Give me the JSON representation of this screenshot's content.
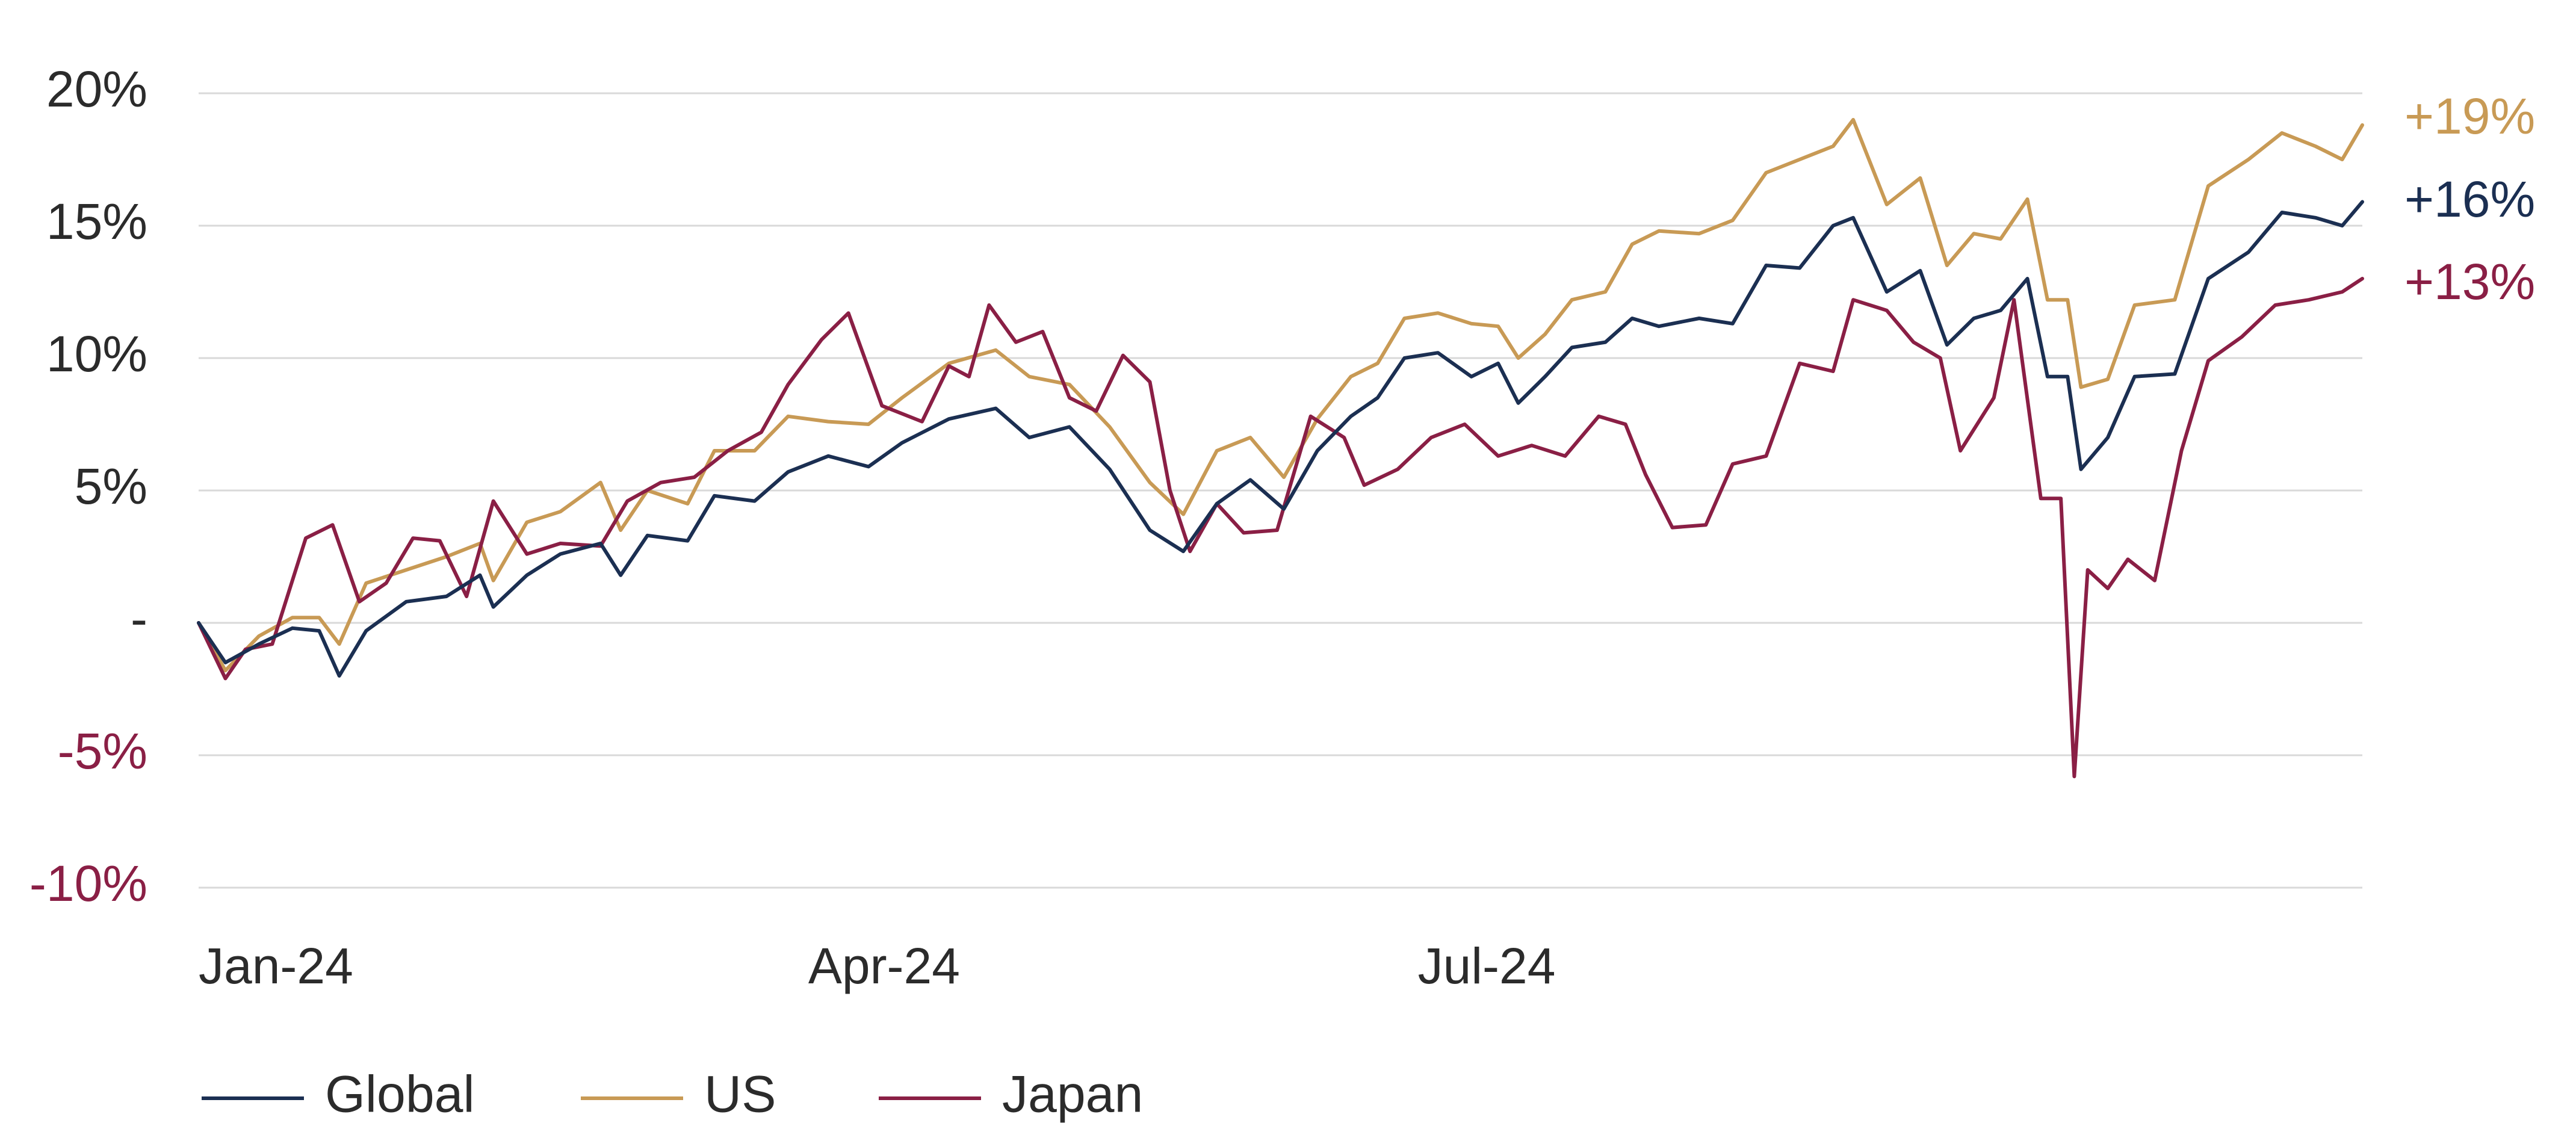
{
  "chart_data": {
    "type": "line",
    "title": "",
    "xlabel": "",
    "ylabel": "",
    "ylim": [
      -10,
      20
    ],
    "y_ticks": [
      20,
      15,
      10,
      5,
      0,
      -5,
      -10
    ],
    "y_tick_labels": [
      "20%",
      "15%",
      "10%",
      "5%",
      "-",
      "-5%",
      "-10%"
    ],
    "y_tick_colors": [
      "#2b2b2b",
      "#2b2b2b",
      "#2b2b2b",
      "#2b2b2b",
      "#2b2b2b",
      "#8a1f45",
      "#8a1f45"
    ],
    "x_ticks": [
      {
        "label": "Jan-24",
        "date": "2024-01-01"
      },
      {
        "label": "Apr-24",
        "date": "2024-04-01"
      },
      {
        "label": "Jul-24",
        "date": "2024-07-01"
      }
    ],
    "grid": "horizontal",
    "legend": "bottom-left",
    "series": [
      {
        "name": "Global",
        "color": "#1b2f52",
        "end_label": "+16%",
        "points": [
          [
            "2024-01-01",
            0.0
          ],
          [
            "2024-01-05",
            -1.5
          ],
          [
            "2024-01-10",
            -0.8
          ],
          [
            "2024-01-15",
            -0.2
          ],
          [
            "2024-01-19",
            -0.3
          ],
          [
            "2024-01-22",
            -2.0
          ],
          [
            "2024-01-26",
            -0.3
          ],
          [
            "2024-02-01",
            0.8
          ],
          [
            "2024-02-07",
            1.0
          ],
          [
            "2024-02-12",
            1.8
          ],
          [
            "2024-02-14",
            0.6
          ],
          [
            "2024-02-19",
            1.8
          ],
          [
            "2024-02-24",
            2.6
          ],
          [
            "2024-03-01",
            3.0
          ],
          [
            "2024-03-04",
            1.8
          ],
          [
            "2024-03-08",
            3.3
          ],
          [
            "2024-03-14",
            3.1
          ],
          [
            "2024-03-18",
            4.8
          ],
          [
            "2024-03-24",
            4.6
          ],
          [
            "2024-03-29",
            5.7
          ],
          [
            "2024-04-04",
            6.3
          ],
          [
            "2024-04-10",
            5.9
          ],
          [
            "2024-04-15",
            6.8
          ],
          [
            "2024-04-22",
            7.7
          ],
          [
            "2024-04-29",
            8.1
          ],
          [
            "2024-05-04",
            7.0
          ],
          [
            "2024-05-10",
            7.4
          ],
          [
            "2024-05-16",
            5.8
          ],
          [
            "2024-05-22",
            3.5
          ],
          [
            "2024-05-27",
            2.7
          ],
          [
            "2024-06-01",
            4.5
          ],
          [
            "2024-06-06",
            5.4
          ],
          [
            "2024-06-11",
            4.3
          ],
          [
            "2024-06-16",
            6.5
          ],
          [
            "2024-06-21",
            7.8
          ],
          [
            "2024-06-25",
            8.5
          ],
          [
            "2024-06-29",
            10.0
          ],
          [
            "2024-07-04",
            10.2
          ],
          [
            "2024-07-09",
            9.3
          ],
          [
            "2024-07-13",
            9.8
          ],
          [
            "2024-07-16",
            8.3
          ],
          [
            "2024-07-20",
            9.3
          ],
          [
            "2024-07-24",
            10.4
          ],
          [
            "2024-07-29",
            10.6
          ],
          [
            "2024-08-02",
            11.5
          ],
          [
            "2024-08-06",
            11.2
          ],
          [
            "2024-08-12",
            11.5
          ],
          [
            "2024-08-17",
            11.3
          ],
          [
            "2024-08-22",
            13.5
          ],
          [
            "2024-08-27",
            13.4
          ],
          [
            "2024-09-01",
            15.0
          ],
          [
            "2024-09-04",
            15.3
          ],
          [
            "2024-09-09",
            12.5
          ],
          [
            "2024-09-14",
            13.3
          ],
          [
            "2024-09-18",
            10.5
          ],
          [
            "2024-09-22",
            11.5
          ],
          [
            "2024-09-26",
            11.8
          ],
          [
            "2024-09-30",
            13.0
          ],
          [
            "2024-10-03",
            9.3
          ],
          [
            "2024-10-06",
            9.3
          ],
          [
            "2024-10-08",
            5.8
          ],
          [
            "2024-10-12",
            7.0
          ],
          [
            "2024-10-16",
            9.3
          ],
          [
            "2024-10-22",
            9.4
          ],
          [
            "2024-10-27",
            13.0
          ],
          [
            "2024-11-02",
            14.0
          ],
          [
            "2024-11-07",
            15.5
          ],
          [
            "2024-11-12",
            15.3
          ],
          [
            "2024-11-16",
            15.0
          ],
          [
            "2024-11-19",
            15.9
          ]
        ]
      },
      {
        "name": "US",
        "color": "#c89a55",
        "end_label": "+19%",
        "points": [
          [
            "2024-01-01",
            0.0
          ],
          [
            "2024-01-05",
            -1.8
          ],
          [
            "2024-01-10",
            -0.5
          ],
          [
            "2024-01-15",
            0.2
          ],
          [
            "2024-01-19",
            0.2
          ],
          [
            "2024-01-22",
            -0.8
          ],
          [
            "2024-01-26",
            1.5
          ],
          [
            "2024-02-01",
            2.0
          ],
          [
            "2024-02-07",
            2.5
          ],
          [
            "2024-02-12",
            3.0
          ],
          [
            "2024-02-14",
            1.6
          ],
          [
            "2024-02-19",
            3.8
          ],
          [
            "2024-02-24",
            4.2
          ],
          [
            "2024-03-01",
            5.3
          ],
          [
            "2024-03-04",
            3.5
          ],
          [
            "2024-03-08",
            5.0
          ],
          [
            "2024-03-14",
            4.5
          ],
          [
            "2024-03-18",
            6.5
          ],
          [
            "2024-03-24",
            6.5
          ],
          [
            "2024-03-29",
            7.8
          ],
          [
            "2024-04-04",
            7.6
          ],
          [
            "2024-04-10",
            7.5
          ],
          [
            "2024-04-15",
            8.5
          ],
          [
            "2024-04-22",
            9.8
          ],
          [
            "2024-04-29",
            10.3
          ],
          [
            "2024-05-04",
            9.3
          ],
          [
            "2024-05-10",
            9.0
          ],
          [
            "2024-05-16",
            7.4
          ],
          [
            "2024-05-22",
            5.3
          ],
          [
            "2024-05-27",
            4.1
          ],
          [
            "2024-06-01",
            6.5
          ],
          [
            "2024-06-06",
            7.0
          ],
          [
            "2024-06-11",
            5.5
          ],
          [
            "2024-06-16",
            7.7
          ],
          [
            "2024-06-21",
            9.3
          ],
          [
            "2024-06-25",
            9.8
          ],
          [
            "2024-06-29",
            11.5
          ],
          [
            "2024-07-04",
            11.7
          ],
          [
            "2024-07-09",
            11.3
          ],
          [
            "2024-07-13",
            11.2
          ],
          [
            "2024-07-16",
            10.0
          ],
          [
            "2024-07-20",
            10.9
          ],
          [
            "2024-07-24",
            12.2
          ],
          [
            "2024-07-29",
            12.5
          ],
          [
            "2024-08-02",
            14.3
          ],
          [
            "2024-08-06",
            14.8
          ],
          [
            "2024-08-12",
            14.7
          ],
          [
            "2024-08-17",
            15.2
          ],
          [
            "2024-08-22",
            17.0
          ],
          [
            "2024-08-27",
            17.5
          ],
          [
            "2024-09-01",
            18.0
          ],
          [
            "2024-09-04",
            19.0
          ],
          [
            "2024-09-09",
            15.8
          ],
          [
            "2024-09-14",
            16.8
          ],
          [
            "2024-09-18",
            13.5
          ],
          [
            "2024-09-22",
            14.7
          ],
          [
            "2024-09-26",
            14.5
          ],
          [
            "2024-09-30",
            16.0
          ],
          [
            "2024-10-03",
            12.2
          ],
          [
            "2024-10-06",
            12.2
          ],
          [
            "2024-10-08",
            8.9
          ],
          [
            "2024-10-12",
            9.2
          ],
          [
            "2024-10-16",
            12.0
          ],
          [
            "2024-10-22",
            12.2
          ],
          [
            "2024-10-27",
            16.5
          ],
          [
            "2024-11-02",
            17.5
          ],
          [
            "2024-11-07",
            18.5
          ],
          [
            "2024-11-12",
            18.0
          ],
          [
            "2024-11-16",
            17.5
          ],
          [
            "2024-11-19",
            18.8
          ]
        ]
      },
      {
        "name": "Japan",
        "color": "#8a1f45",
        "end_label": "+13%",
        "points": [
          [
            "2024-01-01",
            0.0
          ],
          [
            "2024-01-05",
            -2.1
          ],
          [
            "2024-01-08",
            -1.0
          ],
          [
            "2024-01-12",
            -0.8
          ],
          [
            "2024-01-17",
            3.2
          ],
          [
            "2024-01-21",
            3.7
          ],
          [
            "2024-01-25",
            0.8
          ],
          [
            "2024-01-29",
            1.5
          ],
          [
            "2024-02-02",
            3.2
          ],
          [
            "2024-02-06",
            3.1
          ],
          [
            "2024-02-10",
            1.0
          ],
          [
            "2024-02-14",
            4.6
          ],
          [
            "2024-02-19",
            2.6
          ],
          [
            "2024-02-24",
            3.0
          ],
          [
            "2024-03-01",
            2.9
          ],
          [
            "2024-03-05",
            4.6
          ],
          [
            "2024-03-10",
            5.3
          ],
          [
            "2024-03-15",
            5.5
          ],
          [
            "2024-03-20",
            6.5
          ],
          [
            "2024-03-25",
            7.2
          ],
          [
            "2024-03-29",
            9.0
          ],
          [
            "2024-04-03",
            10.7
          ],
          [
            "2024-04-07",
            11.7
          ],
          [
            "2024-04-12",
            8.2
          ],
          [
            "2024-04-18",
            7.6
          ],
          [
            "2024-04-22",
            9.7
          ],
          [
            "2024-04-25",
            9.3
          ],
          [
            "2024-04-28",
            12.0
          ],
          [
            "2024-05-02",
            10.6
          ],
          [
            "2024-05-06",
            11.0
          ],
          [
            "2024-05-10",
            8.5
          ],
          [
            "2024-05-14",
            8.0
          ],
          [
            "2024-05-18",
            10.1
          ],
          [
            "2024-05-22",
            9.1
          ],
          [
            "2024-05-25",
            5.0
          ],
          [
            "2024-05-28",
            2.7
          ],
          [
            "2024-06-01",
            4.5
          ],
          [
            "2024-06-05",
            3.4
          ],
          [
            "2024-06-10",
            3.5
          ],
          [
            "2024-06-15",
            7.8
          ],
          [
            "2024-06-20",
            7.0
          ],
          [
            "2024-06-23",
            5.2
          ],
          [
            "2024-06-28",
            5.8
          ],
          [
            "2024-07-03",
            7.0
          ],
          [
            "2024-07-08",
            7.5
          ],
          [
            "2024-07-13",
            6.3
          ],
          [
            "2024-07-18",
            6.7
          ],
          [
            "2024-07-23",
            6.3
          ],
          [
            "2024-07-28",
            7.8
          ],
          [
            "2024-08-01",
            7.5
          ],
          [
            "2024-08-04",
            5.6
          ],
          [
            "2024-08-08",
            3.6
          ],
          [
            "2024-08-13",
            3.7
          ],
          [
            "2024-08-17",
            6.0
          ],
          [
            "2024-08-22",
            6.3
          ],
          [
            "2024-08-27",
            9.8
          ],
          [
            "2024-09-01",
            9.5
          ],
          [
            "2024-09-04",
            12.2
          ],
          [
            "2024-09-09",
            11.8
          ],
          [
            "2024-09-13",
            10.6
          ],
          [
            "2024-09-17",
            10.0
          ],
          [
            "2024-09-20",
            6.5
          ],
          [
            "2024-09-25",
            8.5
          ],
          [
            "2024-09-28",
            12.2
          ],
          [
            "2024-10-02",
            4.7
          ],
          [
            "2024-10-05",
            4.7
          ],
          [
            "2024-10-07",
            -5.8
          ],
          [
            "2024-10-09",
            2.0
          ],
          [
            "2024-10-12",
            1.3
          ],
          [
            "2024-10-15",
            2.4
          ],
          [
            "2024-10-19",
            1.6
          ],
          [
            "2024-10-23",
            6.5
          ],
          [
            "2024-10-27",
            9.9
          ],
          [
            "2024-11-01",
            10.8
          ],
          [
            "2024-11-06",
            12.0
          ],
          [
            "2024-11-11",
            12.2
          ],
          [
            "2024-11-16",
            12.5
          ],
          [
            "2024-11-19",
            13.0
          ]
        ]
      }
    ]
  }
}
